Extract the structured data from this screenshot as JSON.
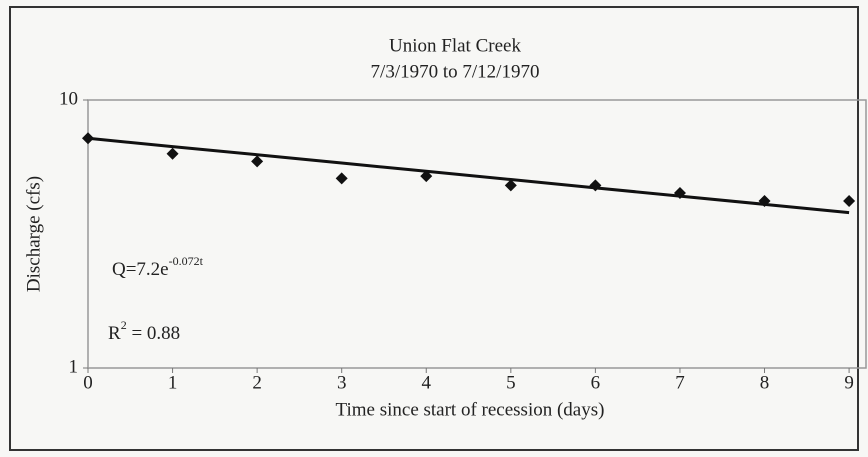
{
  "chart_data": {
    "type": "scatter",
    "title": "Union Flat Creek",
    "subtitle": "7/3/1970 to 7/12/1970",
    "x_label": "Time since start of recession (days)",
    "y_label": "Discharge (cfs)",
    "x": [
      0,
      1,
      2,
      3,
      4,
      5,
      6,
      7,
      8,
      9
    ],
    "values": [
      7.2,
      6.3,
      5.9,
      5.1,
      5.2,
      4.8,
      4.8,
      4.5,
      4.2,
      4.2
    ],
    "color": "#111111",
    "trendline": {
      "x": [
        0,
        1,
        2,
        3,
        4,
        5,
        6,
        7,
        8,
        9
      ],
      "values": [
        7.2,
        6.7,
        6.25,
        5.82,
        5.42,
        5.05,
        4.7,
        4.38,
        4.08,
        3.8
      ],
      "color": "#111111"
    },
    "equation": {
      "base": "Q=7.2e",
      "exponent": "-0.072t"
    },
    "r_squared": {
      "base": "R",
      "exponent": "2",
      "rest": " = 0.88"
    },
    "xlim": [
      0,
      9.2
    ],
    "xticks": [
      0,
      1,
      2,
      3,
      4,
      5,
      6,
      7,
      8,
      9
    ],
    "ylim": [
      1,
      10
    ],
    "yticks": [
      1,
      10
    ],
    "log_y": true,
    "grid": false
  }
}
